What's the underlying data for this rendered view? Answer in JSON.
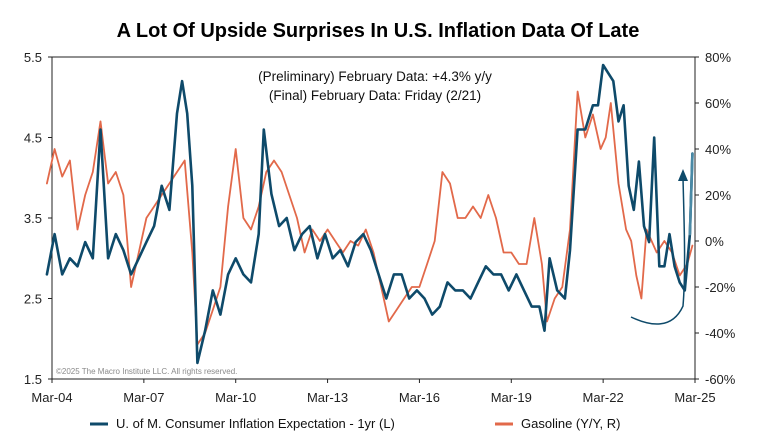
{
  "chart_data": {
    "type": "line",
    "title": "A Lot Of Upside Surprises In U.S. Inflation Data Of Late",
    "annotations": [
      "(Preliminary) February Data: +4.3% y/y",
      "(Final) February Data: Friday (2/21)"
    ],
    "copyright": "©2025 The Macro Institute LLC. All rights reserved.",
    "x_ticks": [
      "Mar-04",
      "Mar-07",
      "Mar-10",
      "Mar-13",
      "Mar-16",
      "Mar-19",
      "Mar-22",
      "Mar-25"
    ],
    "y_left": {
      "ylim": [
        1.5,
        5.5
      ],
      "ticks": [
        "1.5",
        "2.5",
        "3.5",
        "4.5",
        "5.5"
      ]
    },
    "y_right": {
      "ylim": [
        -60,
        80
      ],
      "ticks": [
        "-60%",
        "-40%",
        "-20%",
        "0%",
        "20%",
        "40%",
        "60%",
        "80%"
      ]
    },
    "legend_placement": "bottom",
    "grid": false,
    "series": [
      {
        "name": "U. of M. Consumer Inflation Expectation - 1yr (L)",
        "axis": "left",
        "color": "#0e4a6a",
        "points": [
          [
            "2004-01",
            2.8
          ],
          [
            "2004-04",
            3.3
          ],
          [
            "2004-07",
            2.8
          ],
          [
            "2004-10",
            3.0
          ],
          [
            "2005-01",
            2.9
          ],
          [
            "2005-04",
            3.2
          ],
          [
            "2005-07",
            3.0
          ],
          [
            "2005-10",
            4.6
          ],
          [
            "2006-01",
            3.0
          ],
          [
            "2006-04",
            3.3
          ],
          [
            "2006-07",
            3.1
          ],
          [
            "2006-10",
            2.8
          ],
          [
            "2007-01",
            3.0
          ],
          [
            "2007-04",
            3.2
          ],
          [
            "2007-07",
            3.4
          ],
          [
            "2007-10",
            3.9
          ],
          [
            "2008-01",
            3.6
          ],
          [
            "2008-04",
            4.8
          ],
          [
            "2008-06",
            5.2
          ],
          [
            "2008-08",
            4.8
          ],
          [
            "2008-10",
            3.9
          ],
          [
            "2008-12",
            1.7
          ],
          [
            "2009-03",
            2.1
          ],
          [
            "2009-06",
            2.6
          ],
          [
            "2009-09",
            2.3
          ],
          [
            "2009-12",
            2.8
          ],
          [
            "2010-03",
            3.0
          ],
          [
            "2010-06",
            2.8
          ],
          [
            "2010-09",
            2.7
          ],
          [
            "2010-12",
            3.3
          ],
          [
            "2011-02",
            4.6
          ],
          [
            "2011-05",
            3.8
          ],
          [
            "2011-08",
            3.4
          ],
          [
            "2011-11",
            3.5
          ],
          [
            "2012-02",
            3.1
          ],
          [
            "2012-05",
            3.3
          ],
          [
            "2012-08",
            3.4
          ],
          [
            "2012-11",
            3.0
          ],
          [
            "2013-02",
            3.3
          ],
          [
            "2013-05",
            3.0
          ],
          [
            "2013-08",
            3.1
          ],
          [
            "2013-11",
            2.9
          ],
          [
            "2014-02",
            3.2
          ],
          [
            "2014-05",
            3.3
          ],
          [
            "2014-08",
            3.1
          ],
          [
            "2014-11",
            2.8
          ],
          [
            "2015-02",
            2.5
          ],
          [
            "2015-05",
            2.8
          ],
          [
            "2015-08",
            2.8
          ],
          [
            "2015-11",
            2.5
          ],
          [
            "2016-02",
            2.6
          ],
          [
            "2016-05",
            2.5
          ],
          [
            "2016-08",
            2.3
          ],
          [
            "2016-11",
            2.4
          ],
          [
            "2017-02",
            2.7
          ],
          [
            "2017-05",
            2.6
          ],
          [
            "2017-08",
            2.6
          ],
          [
            "2017-11",
            2.5
          ],
          [
            "2018-02",
            2.7
          ],
          [
            "2018-05",
            2.9
          ],
          [
            "2018-08",
            2.8
          ],
          [
            "2018-11",
            2.8
          ],
          [
            "2019-02",
            2.6
          ],
          [
            "2019-05",
            2.8
          ],
          [
            "2019-08",
            2.6
          ],
          [
            "2019-11",
            2.4
          ],
          [
            "2020-02",
            2.4
          ],
          [
            "2020-04",
            2.1
          ],
          [
            "2020-06",
            3.0
          ],
          [
            "2020-09",
            2.6
          ],
          [
            "2020-12",
            2.5
          ],
          [
            "2021-02",
            3.1
          ],
          [
            "2021-05",
            4.6
          ],
          [
            "2021-08",
            4.6
          ],
          [
            "2021-11",
            4.9
          ],
          [
            "2022-01",
            4.9
          ],
          [
            "2022-03",
            5.4
          ],
          [
            "2022-05",
            5.3
          ],
          [
            "2022-07",
            5.2
          ],
          [
            "2022-09",
            4.7
          ],
          [
            "2022-11",
            4.9
          ],
          [
            "2023-01",
            3.9
          ],
          [
            "2023-03",
            3.6
          ],
          [
            "2023-05",
            4.2
          ],
          [
            "2023-07",
            3.4
          ],
          [
            "2023-09",
            3.2
          ],
          [
            "2023-11",
            4.5
          ],
          [
            "2024-01",
            2.9
          ],
          [
            "2024-03",
            2.9
          ],
          [
            "2024-05",
            3.3
          ],
          [
            "2024-07",
            2.9
          ],
          [
            "2024-09",
            2.7
          ],
          [
            "2024-11",
            2.6
          ],
          [
            "2025-01",
            3.3
          ],
          [
            "2025-02",
            4.3
          ]
        ]
      },
      {
        "name": "Gasoline (Y/Y, R)",
        "axis": "right",
        "color": "#e2694a",
        "points": [
          [
            "2004-01",
            25
          ],
          [
            "2004-04",
            40
          ],
          [
            "2004-07",
            28
          ],
          [
            "2004-10",
            35
          ],
          [
            "2005-01",
            5
          ],
          [
            "2005-04",
            20
          ],
          [
            "2005-07",
            30
          ],
          [
            "2005-10",
            52
          ],
          [
            "2006-01",
            25
          ],
          [
            "2006-04",
            30
          ],
          [
            "2006-07",
            20
          ],
          [
            "2006-10",
            -20
          ],
          [
            "2007-01",
            -5
          ],
          [
            "2007-04",
            10
          ],
          [
            "2007-07",
            15
          ],
          [
            "2007-10",
            20
          ],
          [
            "2008-01",
            25
          ],
          [
            "2008-04",
            30
          ],
          [
            "2008-07",
            35
          ],
          [
            "2008-10",
            -5
          ],
          [
            "2008-12",
            -45
          ],
          [
            "2009-03",
            -40
          ],
          [
            "2009-06",
            -30
          ],
          [
            "2009-09",
            -20
          ],
          [
            "2009-12",
            15
          ],
          [
            "2010-03",
            40
          ],
          [
            "2010-06",
            10
          ],
          [
            "2010-09",
            5
          ],
          [
            "2010-12",
            15
          ],
          [
            "2011-03",
            30
          ],
          [
            "2011-06",
            35
          ],
          [
            "2011-09",
            30
          ],
          [
            "2011-12",
            20
          ],
          [
            "2012-03",
            10
          ],
          [
            "2012-06",
            -5
          ],
          [
            "2012-09",
            5
          ],
          [
            "2012-12",
            0
          ],
          [
            "2013-03",
            5
          ],
          [
            "2013-06",
            0
          ],
          [
            "2013-09",
            -5
          ],
          [
            "2013-12",
            0
          ],
          [
            "2014-03",
            -2
          ],
          [
            "2014-06",
            5
          ],
          [
            "2014-09",
            -5
          ],
          [
            "2014-12",
            -20
          ],
          [
            "2015-03",
            -35
          ],
          [
            "2015-06",
            -30
          ],
          [
            "2015-09",
            -25
          ],
          [
            "2015-12",
            -20
          ],
          [
            "2016-03",
            -20
          ],
          [
            "2016-06",
            -10
          ],
          [
            "2016-09",
            0
          ],
          [
            "2016-12",
            30
          ],
          [
            "2017-03",
            25
          ],
          [
            "2017-06",
            10
          ],
          [
            "2017-09",
            10
          ],
          [
            "2017-12",
            15
          ],
          [
            "2018-03",
            10
          ],
          [
            "2018-06",
            20
          ],
          [
            "2018-09",
            10
          ],
          [
            "2018-12",
            -5
          ],
          [
            "2019-03",
            -5
          ],
          [
            "2019-06",
            -10
          ],
          [
            "2019-09",
            -10
          ],
          [
            "2019-12",
            10
          ],
          [
            "2020-03",
            -10
          ],
          [
            "2020-05",
            -35
          ],
          [
            "2020-08",
            -25
          ],
          [
            "2020-11",
            -20
          ],
          [
            "2021-02",
            5
          ],
          [
            "2021-05",
            65
          ],
          [
            "2021-08",
            45
          ],
          [
            "2021-11",
            55
          ],
          [
            "2022-02",
            40
          ],
          [
            "2022-04",
            45
          ],
          [
            "2022-06",
            60
          ],
          [
            "2022-09",
            25
          ],
          [
            "2022-12",
            5
          ],
          [
            "2023-02",
            0
          ],
          [
            "2023-04",
            -15
          ],
          [
            "2023-06",
            -25
          ],
          [
            "2023-08",
            5
          ],
          [
            "2023-10",
            0
          ],
          [
            "2023-12",
            -5
          ],
          [
            "2024-03",
            0
          ],
          [
            "2024-06",
            -5
          ],
          [
            "2024-09",
            -15
          ],
          [
            "2024-12",
            -10
          ],
          [
            "2025-02",
            -2
          ]
        ]
      }
    ]
  }
}
